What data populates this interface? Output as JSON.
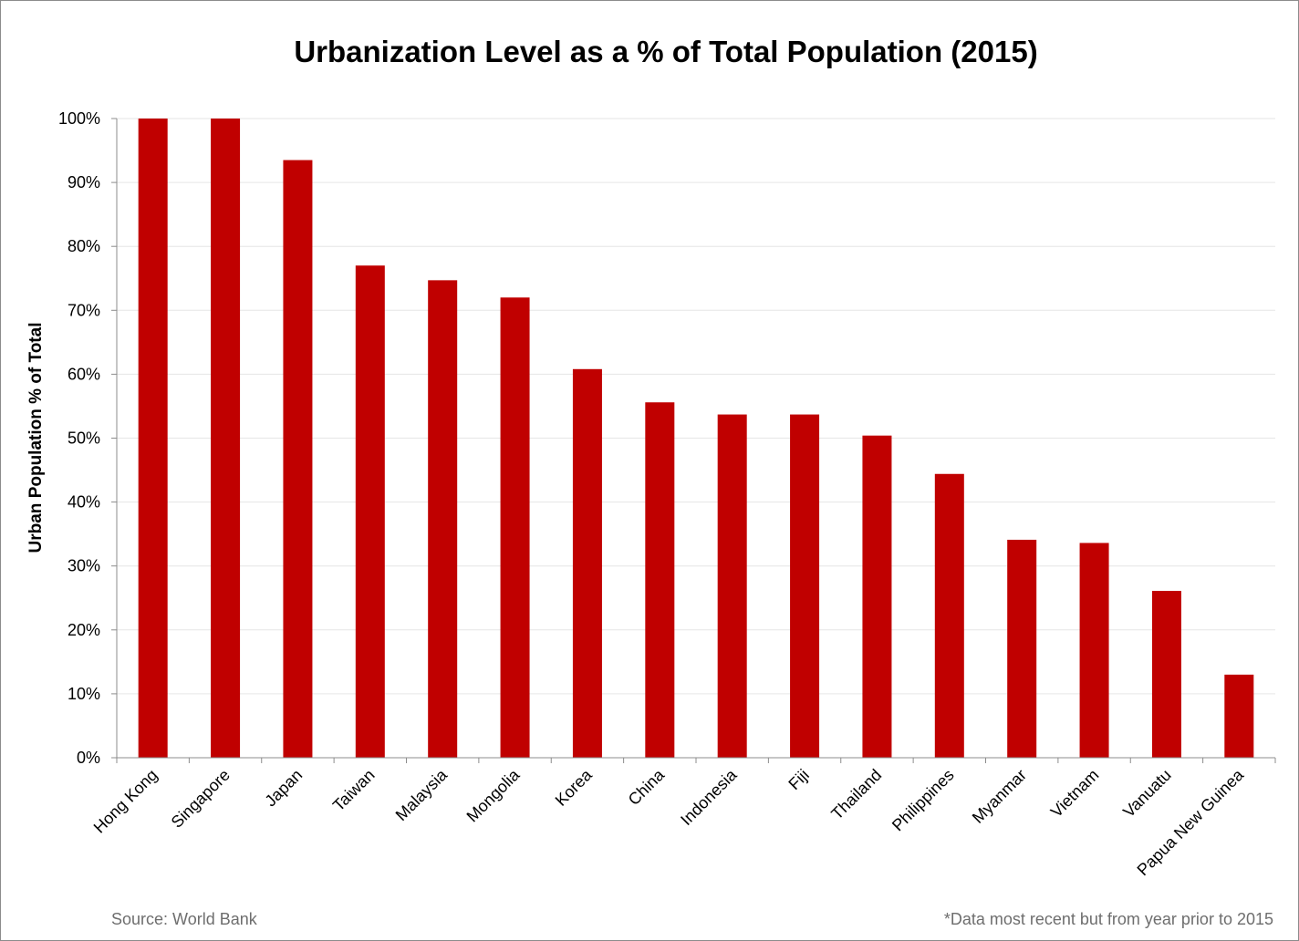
{
  "chart_data": {
    "type": "bar",
    "title": "Urbanization Level as a % of Total Population (2015)",
    "xlabel": "",
    "ylabel": "Urban Population % of Total",
    "ylim": [
      0,
      100
    ],
    "yticks": [
      "0%",
      "10%",
      "20%",
      "30%",
      "40%",
      "50%",
      "60%",
      "70%",
      "80%",
      "90%",
      "100%"
    ],
    "categories": [
      "Hong Kong",
      "Singapore",
      "Japan",
      "Taiwan",
      "Malaysia",
      "Mongolia",
      "Korea",
      "China",
      "Indonesia",
      "Fiji",
      "Thailand",
      "Philippines",
      "Myanmar",
      "Vietnam",
      "Vanuatu",
      "Papua New Guinea"
    ],
    "values": [
      100,
      100,
      93.5,
      77,
      74.7,
      72,
      60.8,
      55.6,
      53.7,
      53.7,
      50.4,
      44.4,
      34.1,
      33.6,
      26.1,
      13
    ],
    "bar_color": "#c00000",
    "gridlines": true
  },
  "footer": {
    "source": "Source: World Bank",
    "note": "*Data most recent but from year prior to 2015"
  }
}
